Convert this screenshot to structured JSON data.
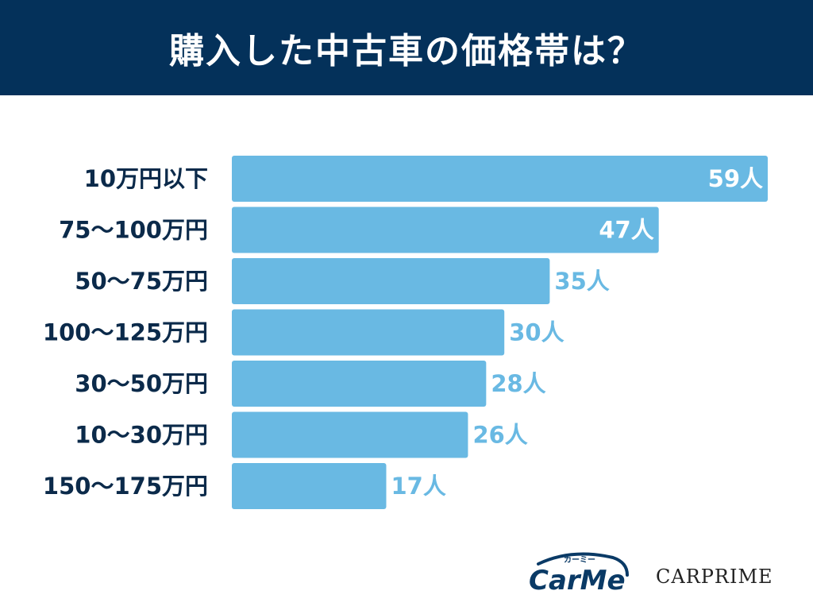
{
  "header": {
    "title": "購入した中古車の価格帯は？"
  },
  "colors": {
    "header_bg": "#04315a",
    "bar": "#69b9e3",
    "value_inside": "#ffffff",
    "value_outside": "#69b9e3",
    "category_text": "#0b2a4a"
  },
  "chart_data": {
    "type": "bar",
    "orientation": "horizontal",
    "title": "購入した中古車の価格帯は？",
    "categories": [
      "10万円以下",
      "75〜100万円",
      "50〜75万円",
      "100〜125万円",
      "30〜50万円",
      "10〜30万円",
      "150〜175万円"
    ],
    "values": [
      59,
      47,
      35,
      30,
      28,
      26,
      17
    ],
    "value_labels": [
      "59人",
      "47人",
      "35人",
      "30人",
      "28人",
      "26人",
      "17人"
    ],
    "unit": "人",
    "xlim": [
      0,
      59
    ],
    "grid": false,
    "legend": "none"
  },
  "logos": {
    "carme_text": "CarMe",
    "carme_kana": "カーミー",
    "carprime_text": "CARPRIME"
  }
}
